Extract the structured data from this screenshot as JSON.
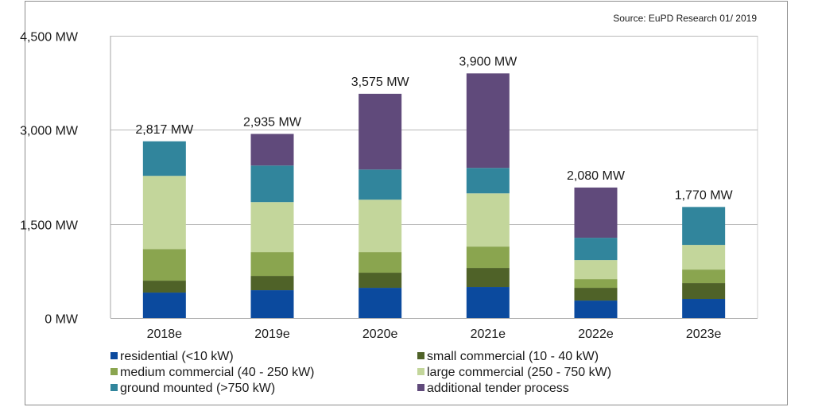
{
  "chart_data": {
    "type": "bar",
    "stacked": true,
    "title": "",
    "source_note": "Source: EuPD Research 01/ 2019",
    "xlabel": "",
    "ylabel": "",
    "ylim": [
      0,
      4500
    ],
    "yticks": [
      0,
      1500,
      3000,
      4500
    ],
    "ytick_labels": [
      "0 MW",
      "1,500 MW",
      "3,000 MW",
      "4,500 MW"
    ],
    "grid": true,
    "legend_position": "bottom",
    "categories": [
      "2018e",
      "2019e",
      "2020e",
      "2021e",
      "2022e",
      "2023e"
    ],
    "series": [
      {
        "name": "residential (<10 kW)",
        "color": "#0b4a9e",
        "values": [
          405,
          443,
          481,
          494,
          278,
          304
        ]
      },
      {
        "name": "small commercial (10 - 40 kW)",
        "color": "#4f6228",
        "values": [
          190,
          228,
          241,
          304,
          203,
          253
        ]
      },
      {
        "name": "medium commercial (40 - 250 kW)",
        "color": "#8aa54f",
        "values": [
          505,
          380,
          329,
          341,
          139,
          215
        ]
      },
      {
        "name": "large commercial (250 - 750 kW)",
        "color": "#c3d69b",
        "values": [
          1166,
          797,
          835,
          848,
          304,
          393
        ]
      },
      {
        "name": "ground mounted (>750 kW)",
        "color": "#31859c",
        "values": [
          551,
          583,
          481,
          406,
          355,
          605
        ]
      },
      {
        "name": "additional tender process",
        "color": "#604a7b",
        "values": [
          0,
          504,
          1208,
          1507,
          801,
          0
        ]
      }
    ],
    "totals": [
      2817,
      2935,
      3575,
      3900,
      2080,
      1770
    ],
    "total_labels": [
      "2,817 MW",
      "2,935 MW",
      "3,575 MW",
      "3,900 MW",
      "2,080 MW",
      "1,770 MW"
    ]
  }
}
